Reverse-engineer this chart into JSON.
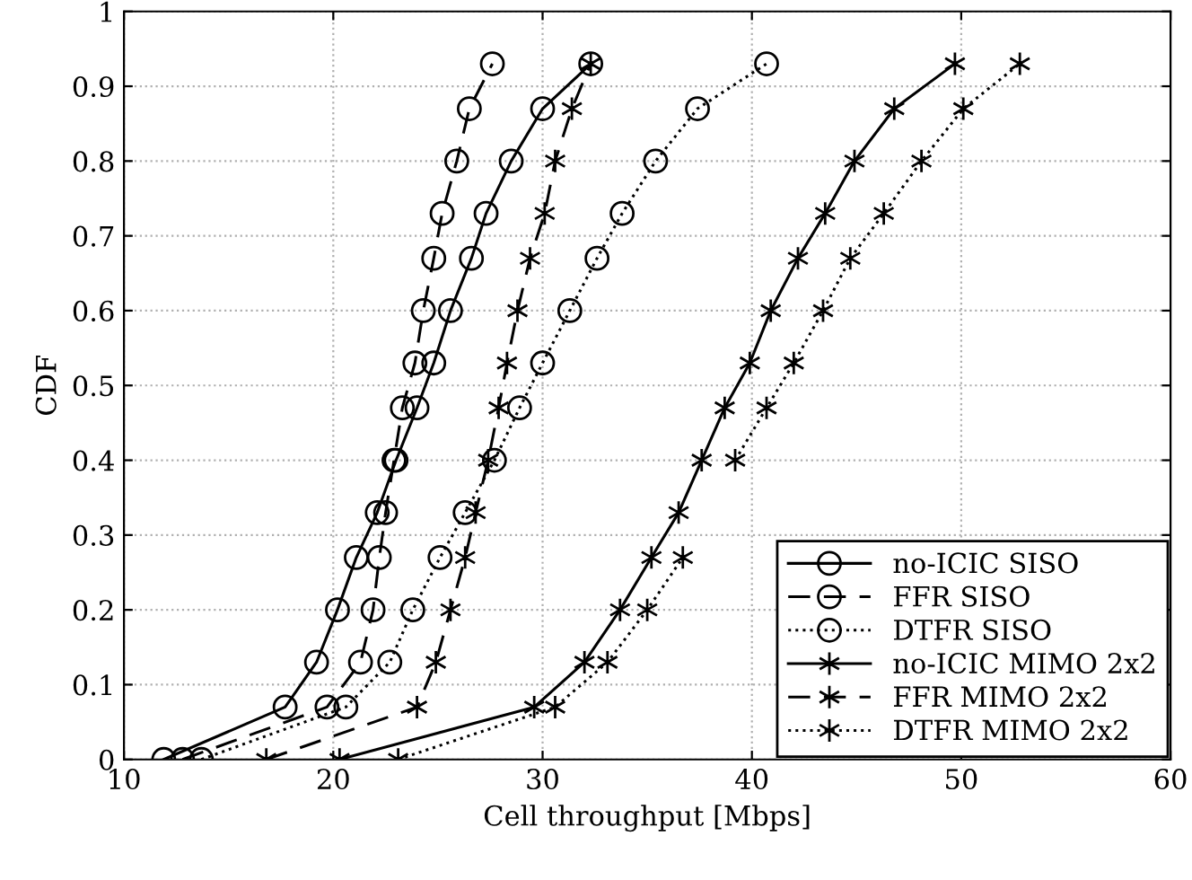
{
  "chart_data": {
    "type": "line",
    "xlabel": "Cell throughput [Mbps]",
    "ylabel": "CDF",
    "xlim": [
      10,
      60
    ],
    "xticks": [
      10,
      20,
      30,
      40,
      50,
      60
    ],
    "ylim": [
      0,
      1
    ],
    "yticks": [
      0,
      0.1,
      0.2,
      0.3,
      0.4,
      0.5,
      0.6,
      0.7,
      0.8,
      0.9,
      1
    ],
    "grid": true,
    "legend": "bottom right",
    "series": [
      {
        "name": "no-ICIC SISO",
        "color": "#000000",
        "marker": "circle",
        "line_style": "solid",
        "x": [
          11.9,
          17.7,
          19.2,
          20.2,
          21.1,
          22.1,
          23.0,
          24.0,
          24.8,
          25.6,
          26.6,
          27.3,
          28.5,
          30.0,
          32.3
        ],
        "values": [
          0,
          0.07,
          0.13,
          0.2,
          0.27,
          0.33,
          0.4,
          0.47,
          0.53,
          0.6,
          0.67,
          0.73,
          0.8,
          0.87,
          0.93
        ]
      },
      {
        "name": "FFR SISO",
        "color": "#000000",
        "marker": "circle",
        "line_style": "dashed",
        "x": [
          12.8,
          19.7,
          21.3,
          21.9,
          22.2,
          22.5,
          22.9,
          23.3,
          23.9,
          24.3,
          24.8,
          25.2,
          25.9,
          26.5,
          27.6
        ],
        "values": [
          0,
          0.07,
          0.13,
          0.2,
          0.27,
          0.33,
          0.4,
          0.47,
          0.53,
          0.6,
          0.67,
          0.73,
          0.8,
          0.87,
          0.93
        ]
      },
      {
        "name": "DTFR SISO",
        "color": "#000000",
        "marker": "circle",
        "line_style": "dotted",
        "x": [
          13.7,
          20.6,
          22.7,
          23.8,
          25.1,
          26.3,
          27.7,
          28.9,
          30.0,
          31.3,
          32.6,
          33.8,
          35.4,
          37.4,
          40.7
        ],
        "values": [
          0,
          0.07,
          0.13,
          0.2,
          0.27,
          0.33,
          0.4,
          0.47,
          0.53,
          0.6,
          0.67,
          0.73,
          0.8,
          0.87,
          0.93
        ]
      },
      {
        "name": "no-ICIC MIMO 2x2",
        "color": "#000000",
        "marker": "cross",
        "line_style": "solid",
        "x": [
          20.3,
          29.6,
          32.0,
          33.7,
          35.2,
          36.5,
          37.6,
          38.7,
          39.9,
          40.9,
          42.2,
          43.5,
          44.9,
          46.8,
          49.7
        ],
        "values": [
          0,
          0.07,
          0.13,
          0.2,
          0.27,
          0.33,
          0.4,
          0.47,
          0.53,
          0.6,
          0.67,
          0.73,
          0.8,
          0.87,
          0.93
        ]
      },
      {
        "name": "FFR MIMO 2x2",
        "color": "#000000",
        "marker": "cross",
        "line_style": "dashed",
        "x": [
          16.8,
          24.0,
          24.9,
          25.6,
          26.3,
          26.8,
          27.4,
          27.9,
          28.3,
          28.8,
          29.4,
          30.1,
          30.6,
          31.4,
          32.3
        ],
        "values": [
          0,
          0.07,
          0.13,
          0.2,
          0.27,
          0.33,
          0.4,
          0.47,
          0.53,
          0.6,
          0.67,
          0.73,
          0.8,
          0.87,
          0.93
        ]
      },
      {
        "name": "DTFR MIMO 2x2",
        "color": "#000000",
        "marker": "cross",
        "line_style": "dotted",
        "x": [
          23.1,
          30.6,
          33.1,
          35.0,
          36.7,
          null,
          39.2,
          40.7,
          42.0,
          43.4,
          44.7,
          46.3,
          48.1,
          50.1,
          52.8
        ],
        "values": [
          0,
          0.07,
          0.13,
          0.2,
          0.27,
          null,
          0.4,
          0.47,
          0.53,
          0.6,
          0.67,
          0.73,
          0.8,
          0.87,
          0.93
        ]
      }
    ]
  }
}
